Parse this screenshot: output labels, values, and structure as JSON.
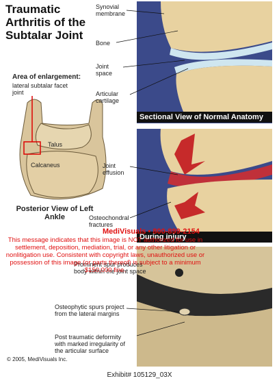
{
  "header": {
    "title": "Traumatic Arthritis of the Subtalar Joint"
  },
  "ankle": {
    "area_heading": "Area of enlargement:",
    "area_text": "lateral subtalar facet joint",
    "talus": "Talus",
    "calcaneus": "Calcaneus",
    "caption": "Posterior View of Left Ankle"
  },
  "panels": [
    {
      "labels": [
        "Synovial membrane",
        "Bone",
        "Joint space",
        "Articular cartilage"
      ],
      "caption": "Sectional View of Normal Anatomy"
    },
    {
      "labels": [
        "Joint effusion",
        "Osteochondral fractures"
      ],
      "caption": "During injury"
    },
    {
      "labels": [
        "Prominent spur produces body within the joint space",
        "Osteophytic spurs project from the lateral margins",
        "Post traumatic deformity with marked irregularity of the articular surface"
      ]
    }
  ],
  "notice": {
    "contact": "MediVisuals • 800-899-2154",
    "text": "This message indicates that this image is NOT authorized for use in settlement, deposition, mediation, trial, or any other litigation or nonlitigation use. Consistent with copyright laws, unauthorized use or possession of this image (or parts thereof) is subject to a minimum $150,000 fine."
  },
  "footer": {
    "copyright": "© 2005, MediVisuals Inc.",
    "exhibit": "Exhibit# 105129_03X"
  }
}
